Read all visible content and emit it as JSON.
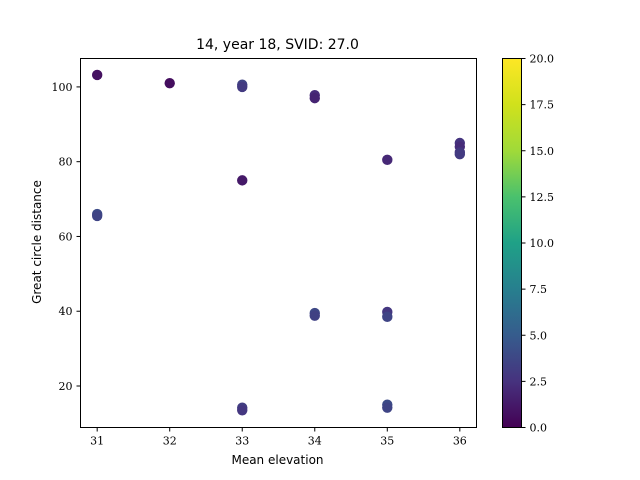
{
  "chart_data": {
    "type": "scatter",
    "title": "14, year 18, SVID: 27.0",
    "xlabel": "Mean elevation",
    "ylabel": "Great circle distance",
    "xlim": [
      30.77,
      36.23
    ],
    "ylim": [
      8.9,
      107.6
    ],
    "xticks": [
      31,
      32,
      33,
      34,
      35,
      36
    ],
    "yticks": [
      20,
      40,
      60,
      80,
      100
    ],
    "grid": false,
    "colorbar": {
      "colormap": "viridis",
      "range": [
        0,
        20
      ],
      "ticks": [
        0.0,
        2.5,
        5.0,
        7.5,
        10.0,
        12.5,
        15.0,
        17.5,
        20.0
      ],
      "tick_labels": [
        "0.0",
        "2.5",
        "5.0",
        "7.5",
        "10.0",
        "12.5",
        "15.0",
        "17.5",
        "20.0"
      ]
    },
    "points": [
      {
        "x": 31,
        "y": 103.2,
        "c": 0.8
      },
      {
        "x": 31,
        "y": 66.0,
        "c": 4.0
      },
      {
        "x": 31,
        "y": 65.5,
        "c": 3.6
      },
      {
        "x": 32,
        "y": 101.0,
        "c": 0.6
      },
      {
        "x": 33,
        "y": 100.6,
        "c": 3.5
      },
      {
        "x": 33,
        "y": 100.0,
        "c": 3.0
      },
      {
        "x": 33,
        "y": 75.0,
        "c": 1.2
      },
      {
        "x": 33,
        "y": 14.2,
        "c": 3.2
      },
      {
        "x": 33,
        "y": 13.5,
        "c": 2.8
      },
      {
        "x": 34,
        "y": 97.8,
        "c": 2.2
      },
      {
        "x": 34,
        "y": 97.0,
        "c": 1.8
      },
      {
        "x": 34,
        "y": 39.5,
        "c": 3.8
      },
      {
        "x": 34,
        "y": 38.8,
        "c": 3.4
      },
      {
        "x": 35,
        "y": 80.5,
        "c": 2.0
      },
      {
        "x": 35,
        "y": 39.8,
        "c": 2.8
      },
      {
        "x": 35,
        "y": 38.5,
        "c": 3.6
      },
      {
        "x": 35,
        "y": 15.0,
        "c": 4.0
      },
      {
        "x": 35,
        "y": 14.2,
        "c": 3.6
      },
      {
        "x": 36,
        "y": 85.0,
        "c": 2.6
      },
      {
        "x": 36,
        "y": 84.0,
        "c": 2.2
      },
      {
        "x": 36,
        "y": 82.5,
        "c": 2.8
      },
      {
        "x": 36,
        "y": 82.0,
        "c": 3.0
      }
    ]
  }
}
